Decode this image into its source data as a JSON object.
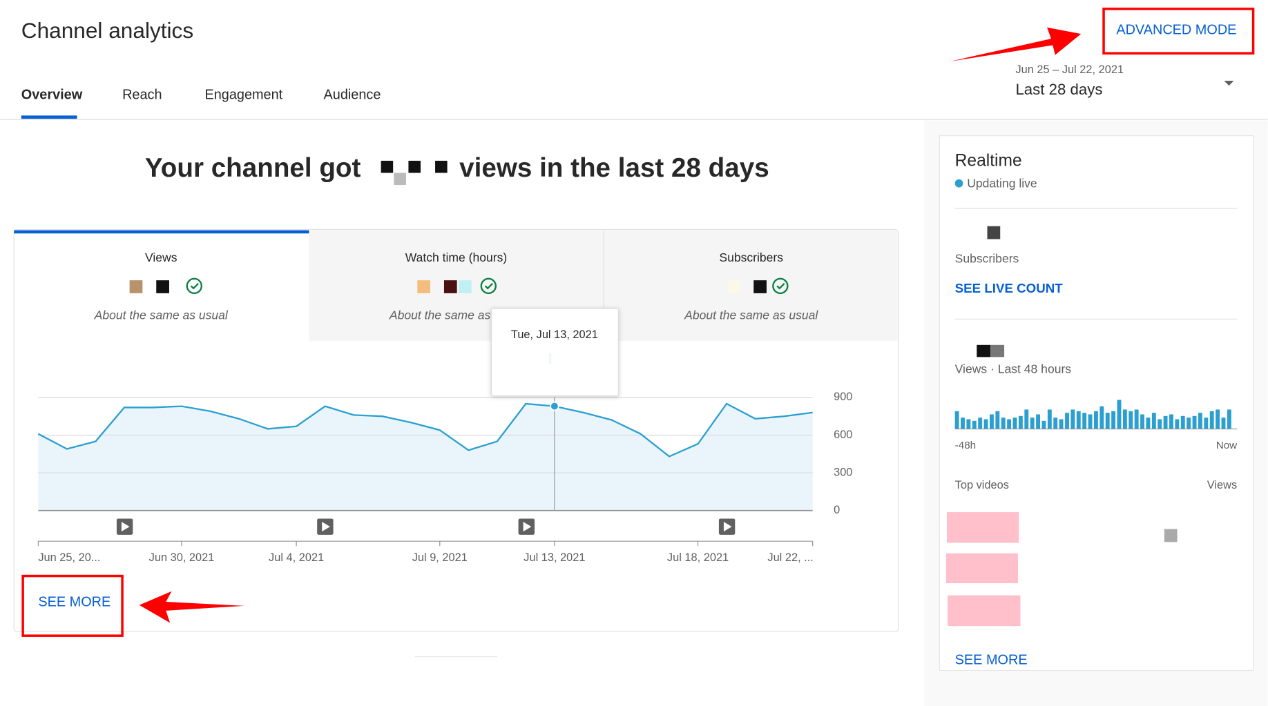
{
  "header": {
    "title": "Channel analytics",
    "advanced_mode": "ADVANCED MODE",
    "date_range": "Jun 25 – Jul 22, 2021",
    "period": "Last 28 days"
  },
  "tabs": [
    "Overview",
    "Reach",
    "Engagement",
    "Audience"
  ],
  "headline": {
    "prefix": "Your channel got",
    "suffix": "views in the last 28 days"
  },
  "metrics": [
    {
      "label": "Views",
      "note": "About the same as usual"
    },
    {
      "label": "Watch time (hours)",
      "note": "About the same as usual"
    },
    {
      "label": "Subscribers",
      "note": "About the same as usual"
    }
  ],
  "chart_data": {
    "type": "line",
    "categories": [
      "Jun 25, 20...",
      null,
      null,
      null,
      null,
      "Jun 30, 2021",
      null,
      null,
      null,
      "Jul 4, 2021",
      null,
      null,
      null,
      null,
      "Jul 9, 2021",
      null,
      null,
      null,
      "Jul 13, 2021",
      null,
      null,
      null,
      null,
      "Jul 18, 2021",
      null,
      null,
      null,
      "Jul 22, ..."
    ],
    "values": [
      610,
      490,
      550,
      820,
      820,
      830,
      790,
      730,
      650,
      670,
      830,
      760,
      750,
      700,
      640,
      480,
      550,
      850,
      830,
      780,
      720,
      610,
      430,
      530,
      850,
      730,
      750,
      780
    ],
    "color": "#2ba0d0",
    "ylim": [
      0,
      900
    ],
    "yticks": [
      0,
      300,
      600,
      900
    ],
    "grid": true,
    "tooltip": "Tue, Jul 13, 2021"
  },
  "see_more": "SEE MORE",
  "realtime": {
    "title": "Realtime",
    "status": "Updating live",
    "subscribers_label": "Subscribers",
    "live_count": "SEE LIVE COUNT",
    "views_label": "Views · Last 48 hours",
    "bars": [
      22,
      14,
      12,
      10,
      14,
      12,
      18,
      22,
      14,
      12,
      14,
      16,
      24,
      14,
      18,
      10,
      24,
      14,
      12,
      20,
      24,
      22,
      20,
      18,
      22,
      28,
      20,
      22,
      36,
      24,
      22,
      24,
      18,
      14,
      20,
      12,
      16,
      18,
      12,
      16,
      14,
      16,
      20,
      14,
      22,
      24,
      14,
      24
    ],
    "start_label": "-48h",
    "end_label": "Now",
    "top_videos": "Top videos",
    "views_column": "Views",
    "see_more": "SEE MORE"
  }
}
